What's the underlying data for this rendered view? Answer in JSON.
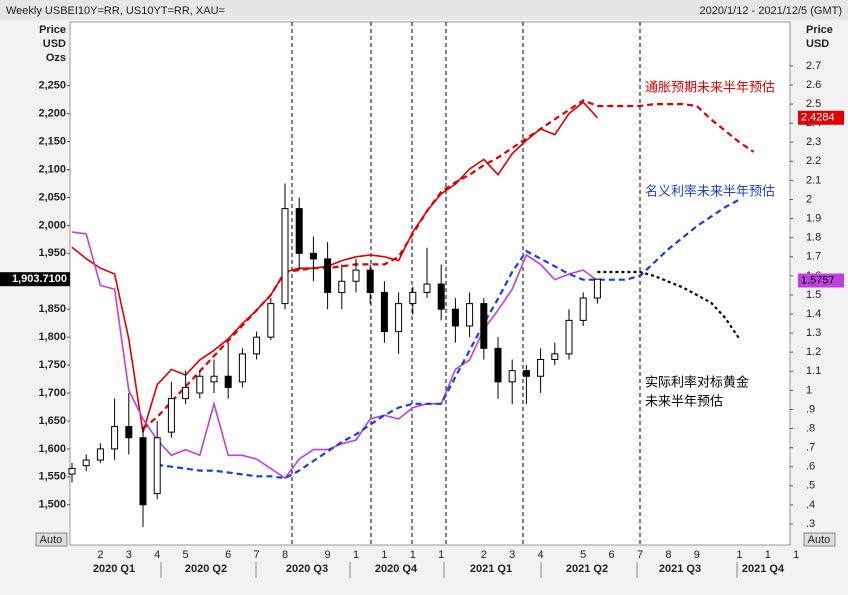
{
  "chart_data": {
    "type": "candlestick",
    "title": "Weekly USBEI10Y=RR, US10YT=RR, XAU=",
    "date_range": "2020/1/12 - 2021/12/5 (GMT)",
    "left_axis_title": [
      "Price",
      "USD",
      "Ozs"
    ],
    "right_axis_title": [
      "Price",
      "USD"
    ],
    "auto_label": "Auto",
    "categories": [
      null,
      null,
      "2",
      null,
      "3",
      null,
      "4",
      null,
      "5",
      null,
      null,
      "6",
      null,
      "7",
      null,
      "8",
      null,
      null,
      "9",
      null,
      "1",
      null,
      "1",
      null,
      "1",
      null,
      "1",
      null,
      null,
      "2",
      null,
      "3",
      null,
      "4",
      null,
      null,
      "5",
      null,
      "6",
      null,
      "7",
      null,
      "8",
      null,
      "9",
      null,
      null,
      "1",
      null,
      "1",
      null,
      "1"
    ],
    "quarters": [
      "2020 Q1",
      "2020 Q2",
      "2020 Q3",
      "2020 Q4",
      "2021 Q1",
      "2021 Q2",
      "2021 Q3",
      "2021 Q4"
    ],
    "ylim": [
      1428,
      2364
    ],
    "yticks": [
      {
        "value": 1500,
        "label": "1,500"
      },
      {
        "value": 1550,
        "label": "1,550"
      },
      {
        "value": 1600,
        "label": "1,600"
      },
      {
        "value": 1650,
        "label": "1,650"
      },
      {
        "value": 1700,
        "label": "1,700"
      },
      {
        "value": 1750,
        "label": "1,750"
      },
      {
        "value": 1800,
        "label": "1,800"
      },
      {
        "value": 1850,
        "label": "1,850"
      },
      {
        "value": 1900,
        "label": "1,900"
      },
      {
        "value": 1950,
        "label": "1,950"
      },
      {
        "value": 2000,
        "label": "2,000"
      },
      {
        "value": 2050,
        "label": "2,050"
      },
      {
        "value": 2100,
        "label": "2,100"
      },
      {
        "value": 2150,
        "label": "2,150"
      },
      {
        "value": 2200,
        "label": "2,200"
      },
      {
        "value": 2250,
        "label": "2,250"
      }
    ],
    "y2lim": [
      0.19,
      2.93
    ],
    "y2ticks": [
      {
        "value": 0.3,
        "label": ".3"
      },
      {
        "value": 0.4,
        "label": ".4"
      },
      {
        "value": 0.5,
        "label": ".5"
      },
      {
        "value": 0.6,
        "label": ".6"
      },
      {
        "value": 0.7,
        "label": ".7"
      },
      {
        "value": 0.8,
        "label": ".8"
      },
      {
        "value": 0.9,
        "label": ".9"
      },
      1,
      1.1,
      1.2,
      1.3,
      1.4,
      1.5,
      1.6,
      1.7,
      1.8,
      1.9,
      2,
      2.1,
      2.2,
      2.3,
      2.4,
      2.5,
      2.6,
      2.7
    ],
    "gold": {
      "open": [
        1555,
        1570,
        1580,
        1600,
        1640,
        1620,
        1520,
        1630,
        1690,
        1700,
        1720,
        1730,
        1720,
        1770,
        1800,
        1860,
        2030,
        1950,
        1940,
        1880,
        1900,
        1920,
        1880,
        1810,
        1860,
        1880,
        1895,
        1850,
        1820,
        1860,
        1780,
        1720,
        1740,
        1730,
        1760,
        1770,
        1830,
        1870,
        null,
        null,
        null,
        null,
        null,
        null,
        null,
        null,
        null,
        null,
        null,
        null,
        null,
        null
      ],
      "high": [
        1575,
        1590,
        1610,
        1690,
        1700,
        1640,
        1650,
        1720,
        1740,
        1740,
        1760,
        1790,
        1780,
        1810,
        1870,
        2075,
        2050,
        1980,
        1970,
        1930,
        1940,
        1930,
        1900,
        1880,
        1890,
        1960,
        1930,
        1870,
        1880,
        1870,
        1800,
        1760,
        1750,
        1780,
        1790,
        1850,
        1880,
        1900,
        null,
        null,
        null,
        null,
        null,
        null,
        null,
        null,
        null,
        null,
        null,
        null,
        null,
        null
      ],
      "low": [
        1540,
        1560,
        1575,
        1580,
        1590,
        1460,
        1510,
        1620,
        1680,
        1690,
        1700,
        1690,
        1710,
        1760,
        1795,
        1850,
        1920,
        1900,
        1850,
        1850,
        1880,
        1860,
        1790,
        1770,
        1840,
        1870,
        1830,
        1790,
        1800,
        1760,
        1690,
        1680,
        1680,
        1700,
        1750,
        1760,
        1820,
        1860,
        null,
        null,
        null,
        null,
        null,
        null,
        null,
        null,
        null,
        null,
        null,
        null,
        null,
        null
      ],
      "close": [
        1565,
        1580,
        1600,
        1640,
        1620,
        1500,
        1620,
        1690,
        1710,
        1730,
        1730,
        1710,
        1770,
        1800,
        1860,
        2030,
        1950,
        1940,
        1880,
        1900,
        1920,
        1880,
        1810,
        1860,
        1880,
        1895,
        1850,
        1820,
        1860,
        1780,
        1720,
        1740,
        1730,
        1760,
        1770,
        1830,
        1870,
        1903.71,
        null,
        null,
        null,
        null,
        null,
        null,
        null,
        null,
        null,
        null,
        null,
        null,
        null,
        null
      ],
      "last_value_label": "1,903.7100"
    },
    "series": [
      {
        "color": "#e00000",
        "style": "solid",
        "axis": "y2",
        "last_label": true,
        "values": [
          1.75,
          1.69,
          1.64,
          1.61,
          1.27,
          0.78,
          1.03,
          1.11,
          1.08,
          1.16,
          1.21,
          1.27,
          1.35,
          1.42,
          1.5,
          1.62,
          1.64,
          1.64,
          1.65,
          1.68,
          1.7,
          1.71,
          1.7,
          1.68,
          1.83,
          1.94,
          2.03,
          2.08,
          2.16,
          2.21,
          2.13,
          2.24,
          2.31,
          2.37,
          2.34,
          2.45,
          2.51,
          2.4284,
          null,
          null,
          null,
          null,
          null,
          null,
          null,
          null,
          null,
          null,
          null,
          null,
          null,
          null
        ]
      },
      {
        "color": "#c040e0",
        "style": "solid",
        "axis": "y2",
        "last_label": true,
        "values": [
          1.83,
          1.82,
          1.55,
          1.53,
          1.0,
          0.85,
          0.74,
          0.66,
          0.69,
          0.66,
          0.93,
          0.66,
          0.66,
          0.64,
          0.59,
          0.54,
          0.64,
          0.69,
          0.69,
          0.72,
          0.74,
          0.85,
          0.87,
          0.85,
          0.91,
          0.93,
          0.93,
          1.11,
          1.16,
          1.32,
          1.42,
          1.53,
          1.71,
          1.66,
          1.58,
          1.61,
          1.63,
          1.5757,
          null,
          null,
          null,
          null,
          null,
          null,
          null,
          null,
          null,
          null,
          null,
          null,
          null,
          null
        ]
      },
      {
        "color": "#e00000",
        "style": "dashed",
        "axis": "y2",
        "values": [
          null,
          null,
          null,
          null,
          null,
          0.8,
          0.86,
          0.94,
          1.02,
          1.1,
          1.18,
          1.26,
          1.34,
          1.42,
          1.5,
          1.62,
          1.63,
          1.64,
          1.64,
          1.65,
          1.66,
          1.66,
          1.66,
          1.7,
          1.82,
          1.94,
          2.04,
          2.09,
          2.13,
          2.18,
          2.22,
          2.27,
          2.32,
          2.37,
          2.42,
          2.47,
          2.52,
          2.49,
          2.49,
          2.49,
          2.49,
          2.5,
          2.5,
          2.5,
          2.49,
          2.42,
          2.36,
          2.3,
          2.25,
          null,
          null,
          null
        ]
      },
      {
        "color": "#1a3fd8",
        "style": "dashed",
        "axis": "y2",
        "values": [
          null,
          null,
          null,
          null,
          null,
          null,
          0.61,
          0.6,
          0.59,
          0.58,
          0.58,
          0.57,
          0.56,
          0.55,
          0.55,
          0.54,
          0.58,
          0.63,
          0.68,
          0.73,
          0.77,
          0.82,
          0.87,
          0.91,
          0.93,
          0.93,
          0.93,
          1.07,
          1.21,
          1.35,
          1.48,
          1.62,
          1.73,
          1.69,
          1.65,
          1.61,
          1.58,
          1.58,
          1.58,
          1.58,
          1.6,
          1.67,
          1.74,
          1.8,
          1.86,
          1.91,
          1.96,
          2.0,
          null,
          null,
          null,
          null
        ]
      },
      {
        "color": "#000000",
        "style": "dotted",
        "axis": "y2",
        "values": [
          null,
          null,
          null,
          null,
          null,
          null,
          null,
          null,
          null,
          null,
          null,
          null,
          null,
          null,
          null,
          null,
          null,
          null,
          null,
          null,
          null,
          null,
          null,
          null,
          null,
          null,
          null,
          null,
          null,
          null,
          null,
          null,
          null,
          null,
          null,
          null,
          null,
          1.62,
          1.62,
          1.62,
          1.62,
          1.6,
          1.57,
          1.54,
          1.5,
          1.46,
          1.38,
          1.27,
          null,
          null,
          null,
          null
        ]
      }
    ],
    "annotations": [
      {
        "text": "通胀预期未来半年预估",
        "color": "#e00000"
      },
      {
        "text": "名义利率未来半年预估",
        "color": "#1a3fd8"
      },
      {
        "text": "实际利率对标黄金",
        "color": "#000000"
      },
      {
        "text": "未来半年预估",
        "color": "#000000"
      }
    ]
  }
}
